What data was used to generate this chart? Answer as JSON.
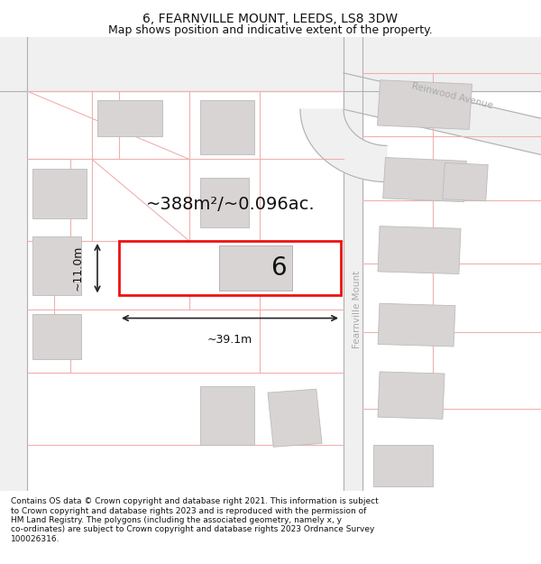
{
  "title": "6, FEARNVILLE MOUNT, LEEDS, LS8 3DW",
  "subtitle": "Map shows position and indicative extent of the property.",
  "area_text": "~388m²/~0.096ac.",
  "width_label": "~39.1m",
  "height_label": "~11.0m",
  "number_label": "6",
  "footer": "Contains OS data © Crown copyright and database right 2021. This information is subject to Crown copyright and database rights 2023 and is reproduced with the permission of HM Land Registry. The polygons (including the associated geometry, namely x, y co-ordinates) are subject to Crown copyright and database rights 2023 Ordnance Survey 100026316.",
  "bg_color": "#ffffff",
  "map_bg": "#ffffff",
  "road_fill": "#f5f5f5",
  "building_fill": "#d8d4d4",
  "building_edge": "#bbbbbb",
  "road_line_color": "#f0b0b0",
  "road_area_color": "#fce8e8",
  "highlight_rect_color": "#ee1111",
  "street_label_color": "#aaaaaa",
  "title_fontsize": 10,
  "subtitle_fontsize": 9,
  "footer_fontsize": 6.5,
  "area_fontsize": 14,
  "number_fontsize": 20,
  "dim_fontsize": 9
}
